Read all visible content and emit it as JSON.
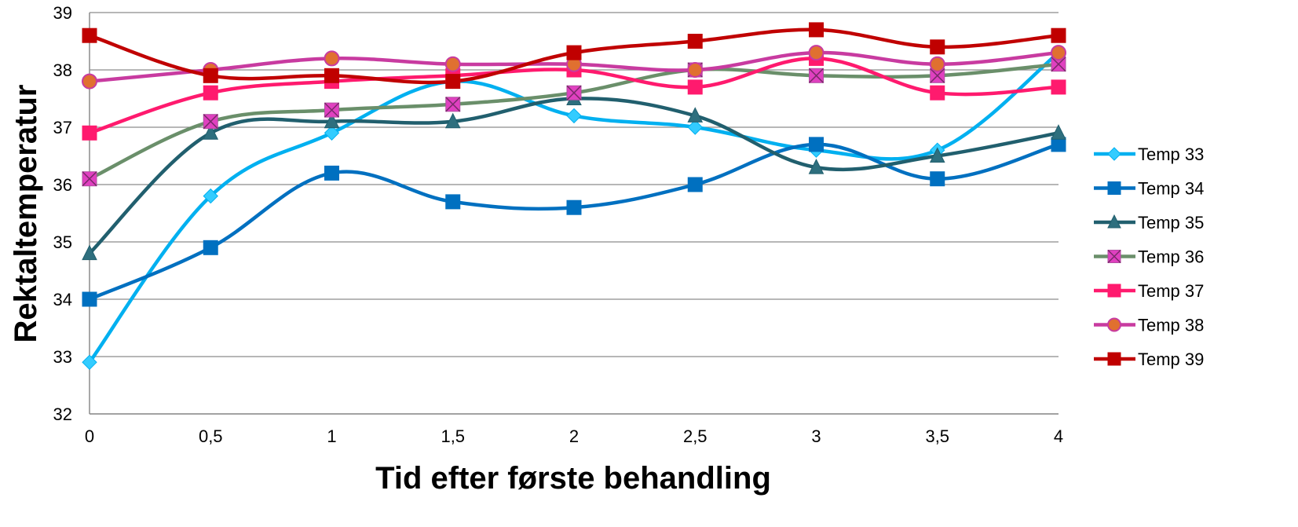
{
  "chart_data": {
    "type": "line",
    "smooth": true,
    "xlabel": "Tid efter første behandling",
    "ylabel": "Rektaltemperatur",
    "x": [
      0,
      0.5,
      1,
      1.5,
      2,
      2.5,
      3,
      3.5,
      4
    ],
    "x_tick_labels": [
      "0",
      "0,5",
      "1",
      "1,5",
      "2",
      "2,5",
      "3",
      "3,5",
      "4"
    ],
    "ylim": [
      32,
      39
    ],
    "y_ticks": [
      32,
      33,
      34,
      35,
      36,
      37,
      38,
      39
    ],
    "y_tick_labels": [
      "32",
      "33",
      "34",
      "35",
      "36",
      "37",
      "38",
      "39"
    ],
    "grid": "horizontal",
    "legend_position": "right",
    "series": [
      {
        "name": "Temp 33",
        "color": "#00B0F0",
        "marker": "diamond",
        "marker_color": "#33CCFF",
        "values": [
          32.9,
          35.8,
          36.9,
          37.8,
          37.2,
          37.0,
          36.6,
          36.6,
          38.3
        ]
      },
      {
        "name": "Temp 34",
        "color": "#0070C0",
        "marker": "square",
        "marker_color": "#0070C0",
        "values": [
          34.0,
          34.9,
          36.2,
          35.7,
          35.6,
          36.0,
          36.7,
          36.1,
          36.7
        ]
      },
      {
        "name": "Temp 35",
        "color": "#215F6E",
        "marker": "triangle",
        "marker_color": "#2E6F7E",
        "values": [
          34.8,
          36.9,
          37.1,
          37.1,
          37.5,
          37.2,
          36.3,
          36.5,
          36.9
        ]
      },
      {
        "name": "Temp 36",
        "color": "#6A8F6A",
        "marker": "x-square",
        "marker_color": "#E040C0",
        "values": [
          36.1,
          37.1,
          37.3,
          37.4,
          37.6,
          38.0,
          37.9,
          37.9,
          38.1
        ]
      },
      {
        "name": "Temp 37",
        "color": "#FF1A6E",
        "marker": "square",
        "marker_color": "#FF1A6E",
        "values": [
          36.9,
          37.6,
          37.8,
          37.9,
          38.0,
          37.7,
          38.2,
          37.6,
          37.7
        ]
      },
      {
        "name": "Temp 38",
        "color": "#C83BA0",
        "marker": "circle",
        "marker_color": "#E07030",
        "values": [
          37.8,
          38.0,
          38.2,
          38.1,
          38.1,
          38.0,
          38.3,
          38.1,
          38.3
        ]
      },
      {
        "name": "Temp 39",
        "color": "#C00000",
        "marker": "square",
        "marker_color": "#C00000",
        "values": [
          38.6,
          37.9,
          37.9,
          37.8,
          38.3,
          38.5,
          38.7,
          38.4,
          38.6
        ]
      }
    ]
  }
}
